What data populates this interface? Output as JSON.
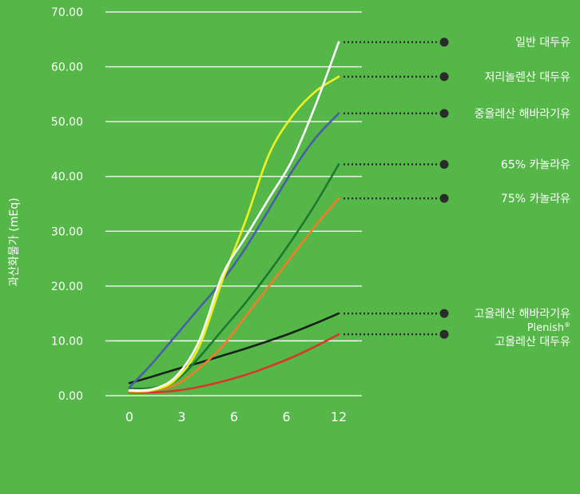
{
  "colors": {
    "background": "#55b748",
    "grid": "#ffffff",
    "text": "#ffffff",
    "dot": "#2b2b2b"
  },
  "chart_data": {
    "type": "line",
    "ylabel": "과산화물가 (mEq)",
    "xlabel": "",
    "ylim": [
      0,
      70
    ],
    "grid": true,
    "x_tick_labels": [
      "0",
      "3",
      "6",
      "6",
      "12"
    ],
    "y_tick_labels": [
      "0.00",
      "10.00",
      "20.00",
      "30.00",
      "40.00",
      "50.00",
      "60.00",
      "70.00"
    ],
    "legend_placement": "right",
    "series": [
      {
        "name": "일반 대두유",
        "color": "#ffffff",
        "points": [
          [
            0,
            1.0
          ],
          [
            1,
            1.2
          ],
          [
            2,
            3.5
          ],
          [
            3,
            10
          ],
          [
            4,
            22
          ],
          [
            5,
            29
          ],
          [
            6,
            36
          ],
          [
            7,
            43
          ],
          [
            8,
            53
          ],
          [
            9,
            64.5
          ]
        ]
      },
      {
        "name": "저리놀렌산 대두유",
        "color": "#eef21f",
        "points": [
          [
            0,
            0.8
          ],
          [
            1,
            1.0
          ],
          [
            2,
            3.0
          ],
          [
            3,
            9
          ],
          [
            4,
            21
          ],
          [
            5,
            32
          ],
          [
            6,
            44
          ],
          [
            7,
            51
          ],
          [
            8,
            55.5
          ],
          [
            9,
            58.2
          ]
        ]
      },
      {
        "name": "중올레산 해바라기유",
        "color": "#4a5ea8",
        "points": [
          [
            0,
            1.5
          ],
          [
            1,
            6
          ],
          [
            2,
            11
          ],
          [
            3,
            16
          ],
          [
            4,
            21
          ],
          [
            5,
            27
          ],
          [
            6,
            34
          ],
          [
            7,
            41
          ],
          [
            8,
            47
          ],
          [
            9,
            51.5
          ]
        ]
      },
      {
        "name": "65% 카놀라유",
        "color": "#1b7a2e",
        "points": [
          [
            0,
            1.3
          ],
          [
            1,
            1.4
          ],
          [
            2,
            2.8
          ],
          [
            3,
            7
          ],
          [
            4,
            12
          ],
          [
            5,
            17
          ],
          [
            6,
            22.5
          ],
          [
            7,
            28.5
          ],
          [
            8,
            35
          ],
          [
            9,
            42.2
          ]
        ]
      },
      {
        "name": "75% 카놀라유",
        "color": "#f07d2a",
        "points": [
          [
            0,
            1.0
          ],
          [
            1,
            1.0
          ],
          [
            2,
            2.0
          ],
          [
            3,
            5
          ],
          [
            4,
            9
          ],
          [
            5,
            14.5
          ],
          [
            6,
            20
          ],
          [
            7,
            25.5
          ],
          [
            8,
            31
          ],
          [
            9,
            36
          ]
        ]
      },
      {
        "name": "고올레산 해바라기유",
        "color": "#17211a",
        "points": [
          [
            0,
            2.3
          ],
          [
            1,
            3.5
          ],
          [
            2,
            4.8
          ],
          [
            3,
            6
          ],
          [
            4,
            7.3
          ],
          [
            5,
            8.6
          ],
          [
            6,
            10
          ],
          [
            7,
            11.5
          ],
          [
            8,
            13.2
          ],
          [
            9,
            15
          ]
        ]
      },
      {
        "name": "Plenish® 고올레산 대두유",
        "color": "#d8362a",
        "points": [
          [
            0,
            0.6
          ],
          [
            1,
            0.6
          ],
          [
            2,
            0.9
          ],
          [
            3,
            1.6
          ],
          [
            4,
            2.6
          ],
          [
            5,
            3.8
          ],
          [
            6,
            5.3
          ],
          [
            7,
            7
          ],
          [
            8,
            9
          ],
          [
            9,
            11.2
          ]
        ]
      }
    ]
  }
}
